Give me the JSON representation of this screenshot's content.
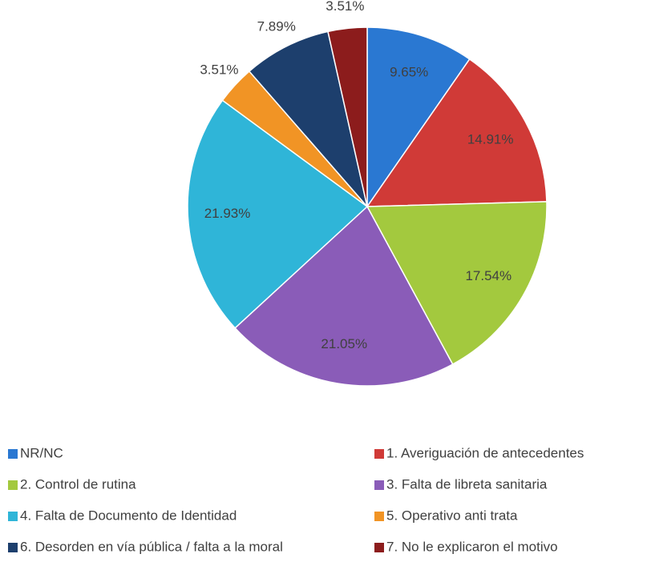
{
  "chart_data": {
    "type": "pie",
    "categories": [
      "NR/NC",
      "1. Averiguación de antecedentes",
      "2. Control de rutina",
      "3. Falta de libreta sanitaria",
      "4. Falta de Documento de Identidad",
      "5. Operativo anti trata",
      "6. Desorden en vía pública / falta a la moral",
      "7. No le explicaron el motivo"
    ],
    "values": [
      9.65,
      14.91,
      17.54,
      21.05,
      21.93,
      3.51,
      7.89,
      3.51
    ],
    "value_labels": [
      "9.65%",
      "14.91%",
      "17.54%",
      "21.05%",
      "21.93%",
      "3.51%",
      "7.89%",
      "3.51%"
    ],
    "colors": [
      "#2a78d2",
      "#d03a37",
      "#a3c93e",
      "#8a5cb8",
      "#2fb5d8",
      "#f19425",
      "#1d3f6d",
      "#8c1c1c"
    ],
    "legend": "bottom"
  }
}
